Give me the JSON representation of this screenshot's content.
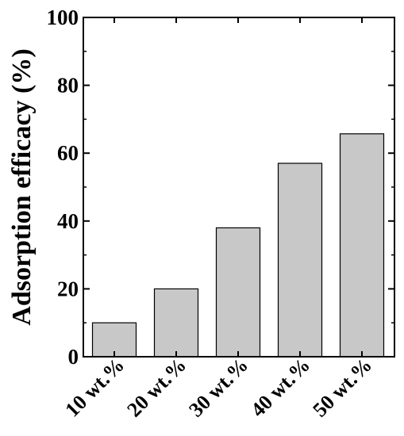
{
  "chart_data": {
    "type": "bar",
    "title": "",
    "xlabel": "",
    "ylabel": "Adsorption efficacy (%)",
    "categories": [
      "10 wt.%",
      "20 wt.%",
      "30 wt.%",
      "40 wt.%",
      "50 wt.%"
    ],
    "values": [
      10,
      20,
      38,
      57,
      65.7
    ],
    "ylim": [
      0,
      100
    ],
    "yticks": [
      "0",
      "20",
      "40",
      "60",
      "80",
      "100"
    ],
    "grid": false,
    "legend": "none",
    "colors": {
      "bar_fill": "#c8c8c8",
      "bar_stroke": "#000000",
      "axis": "#000000"
    }
  }
}
